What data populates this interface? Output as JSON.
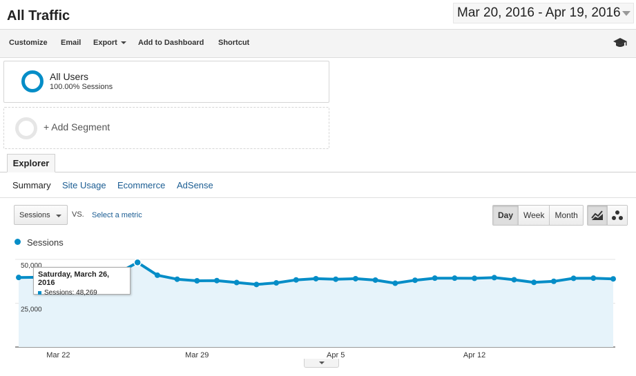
{
  "header": {
    "title": "All Traffic",
    "date_range": "Mar 20, 2016 - Apr 19, 2016"
  },
  "toolbar": {
    "customize": "Customize",
    "email": "Email",
    "export": "Export",
    "add_to_dashboard": "Add to Dashboard",
    "shortcut": "Shortcut",
    "icon": "graduation-cap-icon"
  },
  "segments": {
    "active": {
      "name": "All Users",
      "detail": "100.00% Sessions"
    },
    "add": "+ Add Segment"
  },
  "tabs": {
    "explorer": "Explorer"
  },
  "subtabs": [
    "Summary",
    "Site Usage",
    "Ecommerce",
    "AdSense"
  ],
  "controls": {
    "metric": "Sessions",
    "vs": "VS.",
    "select_metric": "Select a metric",
    "periods": [
      "Day",
      "Week",
      "Month"
    ],
    "active_period": "Day",
    "chart_types": [
      "line-chart-icon",
      "motion-chart-icon"
    ]
  },
  "legend": {
    "series": "Sessions",
    "color": "#058dc7"
  },
  "tooltip": {
    "date": "Saturday, March 26, 2016",
    "label": "Sessions: 48,269"
  },
  "chart_data": {
    "type": "area",
    "x": [
      "Mar 20",
      "Mar 21",
      "Mar 22",
      "Mar 23",
      "Mar 24",
      "Mar 25",
      "Mar 26",
      "Mar 27",
      "Mar 28",
      "Mar 29",
      "Mar 30",
      "Mar 31",
      "Apr 1",
      "Apr 2",
      "Apr 3",
      "Apr 4",
      "Apr 5",
      "Apr 6",
      "Apr 7",
      "Apr 8",
      "Apr 9",
      "Apr 10",
      "Apr 11",
      "Apr 12",
      "Apr 13",
      "Apr 14",
      "Apr 15",
      "Apr 16",
      "Apr 17",
      "Apr 18",
      "Apr 19"
    ],
    "series": [
      {
        "name": "Sessions",
        "values": [
          39700,
          39800,
          39500,
          39300,
          39500,
          42100,
          48269,
          41000,
          38700,
          37800,
          37900,
          36800,
          35700,
          36600,
          38300,
          39000,
          38700,
          39000,
          38200,
          36400,
          38100,
          39300,
          39300,
          39200,
          39600,
          38400,
          36900,
          37500,
          39200,
          39300,
          38900
        ]
      }
    ],
    "x_ticks": [
      "Mar 22",
      "Mar 29",
      "Apr 5",
      "Apr 12"
    ],
    "y_ticks": [
      "50,000",
      "25,000"
    ],
    "ylim": [
      0,
      50000
    ],
    "grid": true,
    "legend": "top-left",
    "colors": {
      "line": "#058dc7",
      "fill": "#e6f3fa"
    }
  }
}
